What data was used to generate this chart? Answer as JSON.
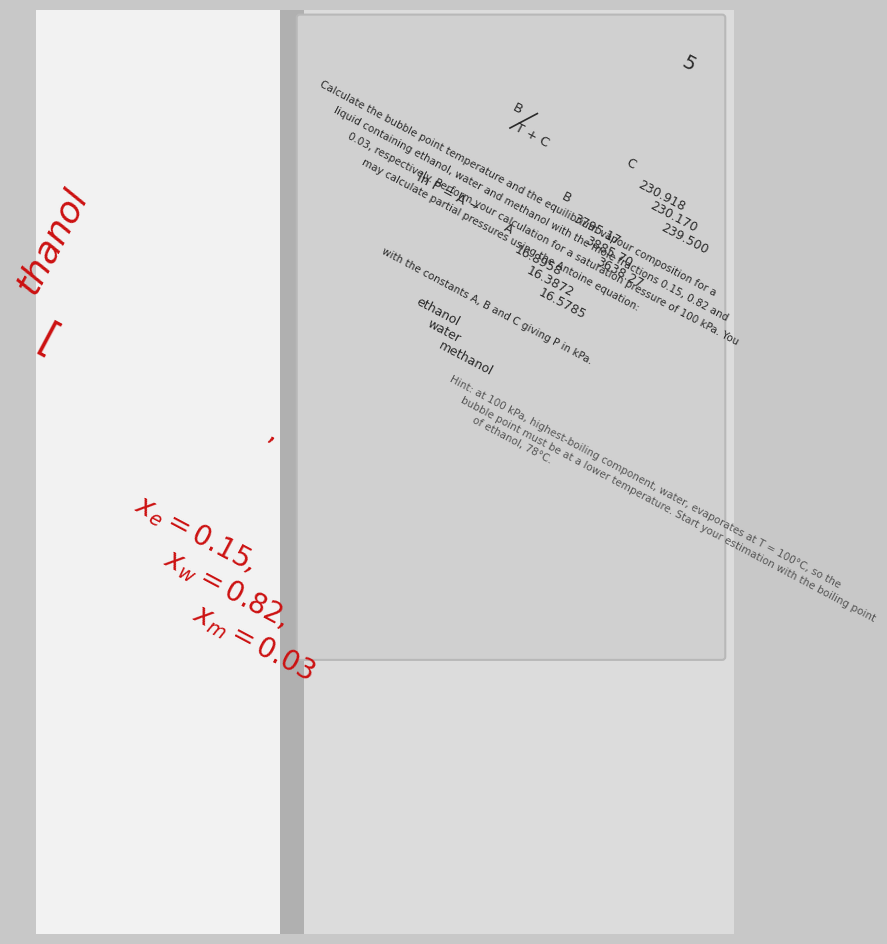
{
  "question_number": "5",
  "main_text_lines": [
    "Calculate the bubble point temperature and the equilibrium vapour composition for a",
    "liquid containing ethanol, water and methanol with the mole fractions 0.15, 0.82 and",
    "0.03, respectively. Perform your calculation for a saturation pressure of 100 kPa. You",
    "may calculate partial pressures using the Antoine equation:"
  ],
  "equation_note": "with the constants A, B and C giving P in kPa.",
  "table_headers": [
    "",
    "A",
    "B",
    "C"
  ],
  "table_rows": [
    [
      "ethanol",
      "16.8958",
      "3795.17",
      "230.918"
    ],
    [
      "water",
      "16.3872",
      "3885.70",
      "230.170"
    ],
    [
      "methanol",
      "16.5785",
      "3638.27",
      "239.500"
    ]
  ],
  "hint_lines": [
    "Hint: at 100 kPa, highest-boiling component, water, evaporates at T = 100°C, so the",
    "bubble point must be at a lower temperature. Start your estimation with the boiling point",
    "of ethanol, 78°C."
  ],
  "bg_color_left": "#f0f0f0",
  "bg_color_right": "#e0e0e0",
  "card_color": "#d8d8d8",
  "text_color": "#2a2a2a",
  "hint_color": "#555555",
  "red_color": "#cc1111",
  "rotate_deg": -28
}
